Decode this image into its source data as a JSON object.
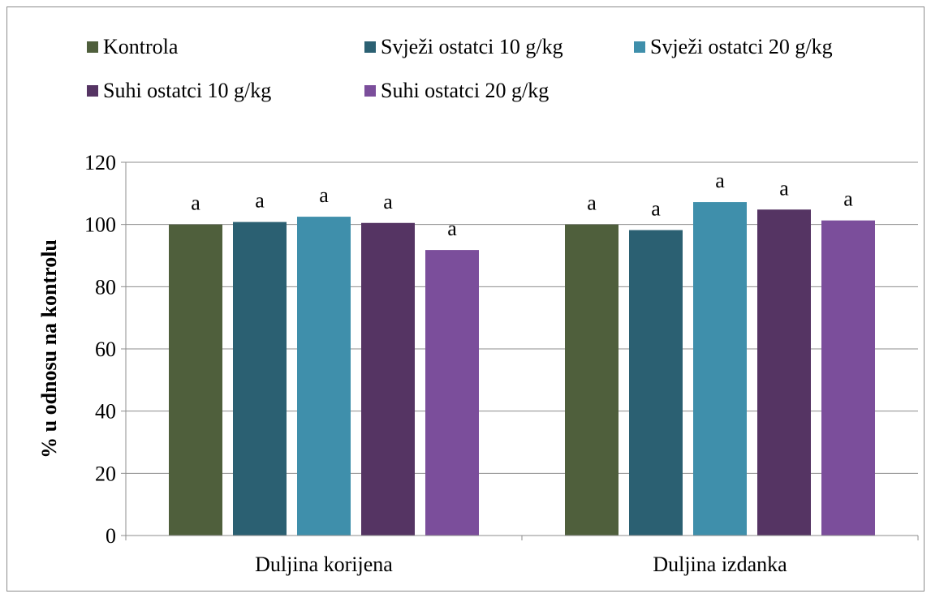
{
  "chart_data": {
    "type": "bar",
    "categories": [
      "Duljina korijena",
      "Duljina izdanka"
    ],
    "series": [
      {
        "name": "Kontrola",
        "color": "#4f5f3c",
        "values": [
          100,
          100
        ],
        "labels": [
          "a",
          "a"
        ]
      },
      {
        "name": "Svježi ostatci 10 g/kg",
        "color": "#2b6072",
        "values": [
          100.8,
          98.2
        ],
        "labels": [
          "a",
          "a"
        ]
      },
      {
        "name": "Svježi ostatci 20 g/kg",
        "color": "#3f8fab",
        "values": [
          102.5,
          107.2
        ],
        "labels": [
          "a",
          "a"
        ]
      },
      {
        "name": "Suhi ostatci 10 g/kg",
        "color": "#553463",
        "values": [
          100.5,
          104.8
        ],
        "labels": [
          "a",
          "a"
        ]
      },
      {
        "name": "Suhi ostatci 20 g/kg",
        "color": "#7b4e9b",
        "values": [
          91.8,
          101.3
        ],
        "labels": [
          "a",
          "a"
        ]
      }
    ],
    "ylabel": "% u odnosu na kontrolu",
    "xlabel": "",
    "ylim": [
      0,
      120
    ],
    "yticks": [
      0,
      20,
      40,
      60,
      80,
      100,
      120
    ],
    "grid": true,
    "legend_position": "top"
  }
}
